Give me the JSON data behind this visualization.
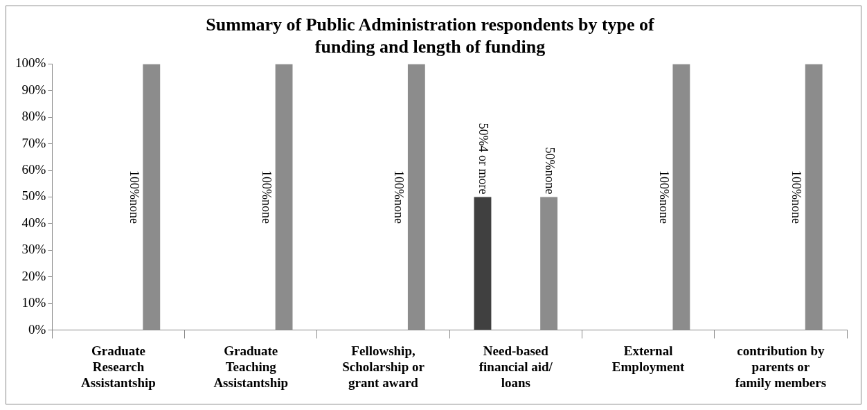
{
  "chart_data": {
    "type": "bar",
    "title": "Summary of Public Administration respondents by type of funding and length of funding",
    "categories": [
      "Graduate Research Assistantship",
      "Graduate Teaching Assistantship",
      "Fellowship, Scholarship or grant award",
      "Need-based financial aid/ loans",
      "External Employment",
      "contribution by parents or family members"
    ],
    "series": [
      {
        "color": "#404040",
        "values": [
          null,
          null,
          null,
          50,
          null,
          null
        ],
        "value_labels": [
          null,
          null,
          null,
          "50%4 or more",
          null,
          null
        ]
      },
      {
        "color": "#8c8c8c",
        "values": [
          100,
          100,
          100,
          50,
          100,
          100
        ],
        "value_labels": [
          "100%none",
          "100%none",
          "100%none",
          "50%none",
          "100%none",
          "100%none"
        ]
      }
    ],
    "ylim": [
      0,
      100
    ],
    "yticks": [
      {
        "value": 0,
        "label": "0%"
      },
      {
        "value": 10,
        "label": "10%"
      },
      {
        "value": 20,
        "label": "20%"
      },
      {
        "value": 30,
        "label": "30%"
      },
      {
        "value": 40,
        "label": "40%"
      },
      {
        "value": 50,
        "label": "50%"
      },
      {
        "value": 60,
        "label": "60%"
      },
      {
        "value": 70,
        "label": "70%"
      },
      {
        "value": 80,
        "label": "80%"
      },
      {
        "value": 90,
        "label": "90%"
      },
      {
        "value": 100,
        "label": "100%"
      }
    ],
    "grid": false,
    "legend": false
  }
}
